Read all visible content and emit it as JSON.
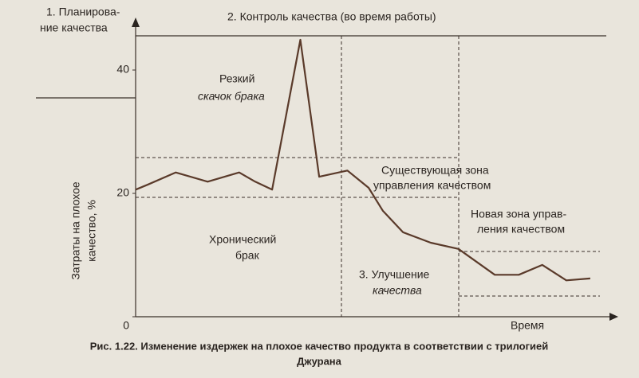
{
  "chart_data": {
    "type": "line",
    "x_label": "Время",
    "y_label": [
      "Затраты на плохое",
      "качество, %"
    ],
    "x": [
      0,
      2.5,
      8.5,
      15.3,
      22,
      25.4,
      29,
      35,
      39,
      45,
      49.5,
      52.5,
      56.8,
      62.7,
      68.6,
      76.3,
      81.4,
      86.4,
      91.5,
      96.6
    ],
    "values": [
      20.6,
      21.4,
      23.4,
      21.9,
      23.4,
      21.9,
      20.6,
      44.9,
      22.7,
      23.7,
      20.9,
      17.2,
      13.7,
      12.0,
      11.0,
      6.8,
      6.8,
      8.4,
      5.9,
      6.2
    ],
    "color": "#5a3a2a",
    "xlim": [
      0,
      100
    ],
    "ylim": [
      0,
      48
    ],
    "yticks": [
      0,
      20,
      40
    ]
  },
  "labels": {
    "planning": [
      "1. Планирова-",
      "ние качества"
    ],
    "control": "2. Контроль качества (во время работы)",
    "spike": [
      "Резкий",
      "скачок брака"
    ],
    "existing_zone": [
      "Существующая зона",
      "управления качеством"
    ],
    "new_zone": [
      "Новая зона управ-",
      "ления качеством"
    ],
    "chronic": [
      "Хронический",
      "брак"
    ],
    "improvement": [
      "3. Улучшение",
      "качества"
    ]
  },
  "caption": [
    "Рис. 1.22. Изменение издержек на плохое качество продукта в соответствии с трилогией",
    "Джурана"
  ]
}
